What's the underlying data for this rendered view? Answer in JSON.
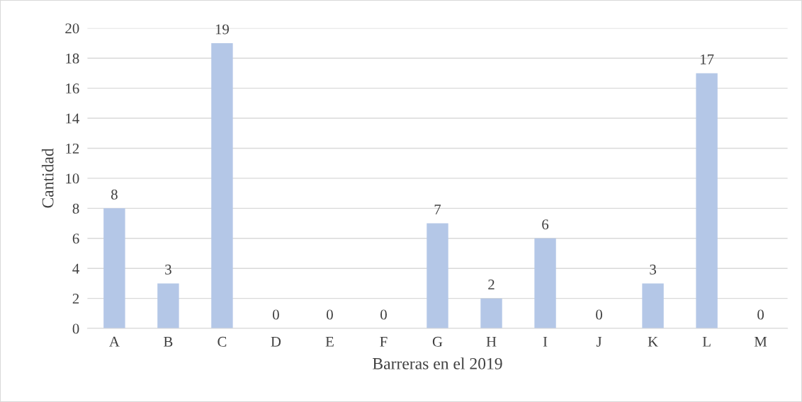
{
  "chart_data": {
    "type": "bar",
    "xlabel": "Barreras en el 2019",
    "ylabel": "Cantidad",
    "categories": [
      "A",
      "B",
      "C",
      "D",
      "E",
      "F",
      "G",
      "H",
      "I",
      "J",
      "K",
      "L",
      "M"
    ],
    "values": [
      8,
      3,
      19,
      0,
      0,
      0,
      7,
      2,
      6,
      0,
      3,
      17,
      0
    ],
    "color": "#b4c7e7",
    "ylim": [
      0,
      20
    ],
    "yticks": [
      0,
      2,
      4,
      6,
      8,
      10,
      12,
      14,
      16,
      18,
      20
    ],
    "grid": "y",
    "data_labels": true
  }
}
